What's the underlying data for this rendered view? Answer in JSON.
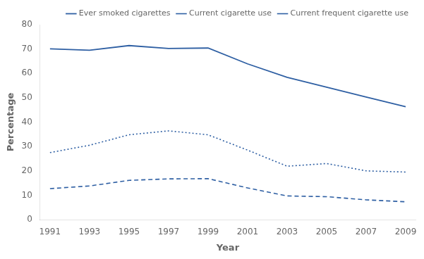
{
  "chart_data": {
    "type": "line",
    "xlabel": "Year",
    "ylabel": "Percentage",
    "x": [
      1991,
      1993,
      1995,
      1997,
      1999,
      2001,
      2003,
      2005,
      2007,
      2009
    ],
    "series": [
      {
        "name": "Ever smoked cigarettes",
        "color": "#2e5fa3",
        "line_style": "solid",
        "values": [
          70.1,
          69.5,
          71.4,
          70.2,
          70.4,
          63.9,
          58.4,
          54.3,
          50.3,
          46.3
        ]
      },
      {
        "name": "Current cigarette use",
        "color": "#2e5fa3",
        "line_style": "dotted",
        "values": [
          27.5,
          30.5,
          34.8,
          36.4,
          34.8,
          28.5,
          21.9,
          23.0,
          20.0,
          19.5
        ]
      },
      {
        "name": "Current frequent cigarette use",
        "color": "#2e5fa3",
        "line_style": "dashed",
        "values": [
          12.7,
          13.8,
          16.1,
          16.7,
          16.8,
          13.0,
          9.7,
          9.4,
          8.1,
          7.3
        ]
      }
    ],
    "xlim": [
      1990.5,
      2009.5
    ],
    "xticks": [
      1991,
      1993,
      1995,
      1997,
      1999,
      2001,
      2003,
      2005,
      2007,
      2009
    ],
    "ylim": [
      0,
      80
    ],
    "yticks": [
      0,
      10,
      20,
      30,
      40,
      50,
      60,
      70,
      80
    ],
    "grid": false,
    "legend": "upper right"
  }
}
